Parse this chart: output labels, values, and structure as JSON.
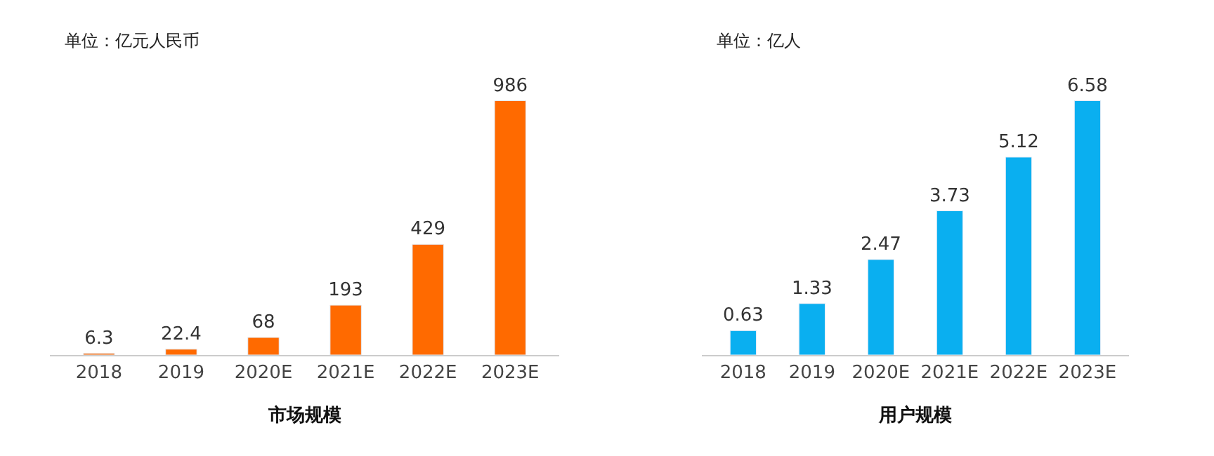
{
  "chart_data": [
    {
      "type": "bar",
      "xlabel": "市场规模",
      "annotations": [
        "单位：亿元人民币"
      ],
      "categories": [
        "2018",
        "2019",
        "2020E",
        "2021E",
        "2022E",
        "2023E"
      ],
      "values": [
        6.3,
        22.4,
        68,
        193,
        429,
        986
      ],
      "color": "#ff6a00",
      "data_labels": true
    },
    {
      "type": "bar",
      "xlabel": "用户规模",
      "annotations": [
        "单位：亿人"
      ],
      "categories": [
        "2018",
        "2019",
        "2020E",
        "2021E",
        "2022E",
        "2023E"
      ],
      "values": [
        0.63,
        1.33,
        2.47,
        3.73,
        5.12,
        6.58
      ],
      "color": "#0aaff0",
      "data_labels": true
    }
  ]
}
